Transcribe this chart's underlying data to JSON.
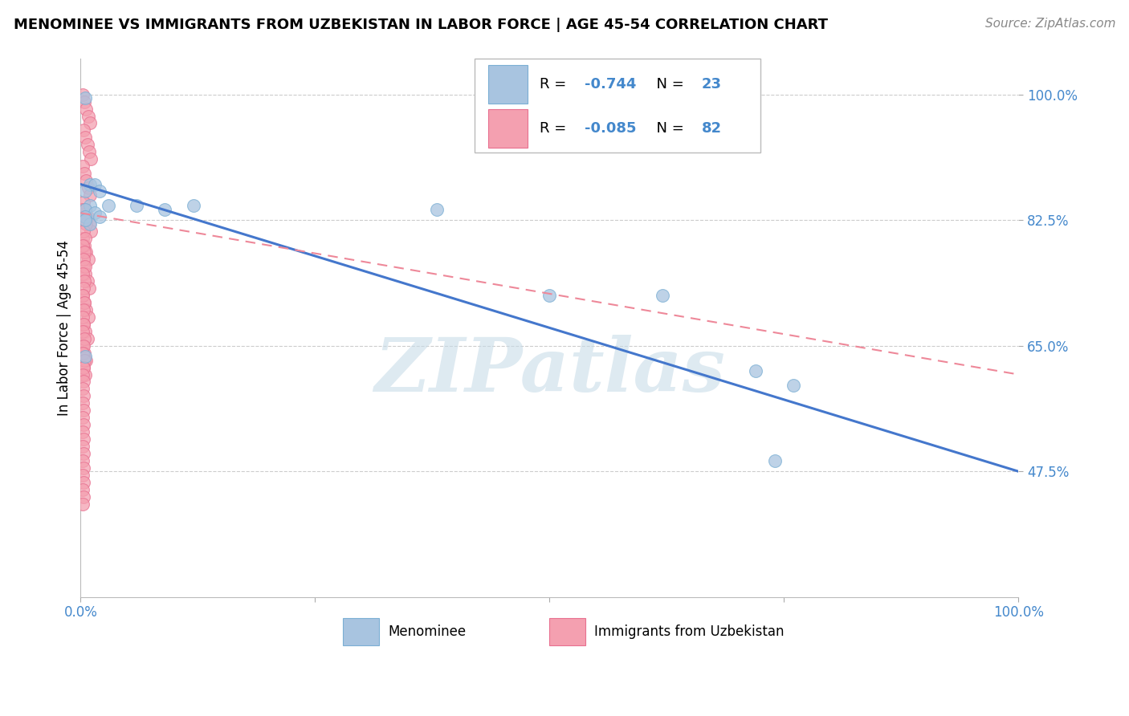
{
  "title": "MENOMINEE VS IMMIGRANTS FROM UZBEKISTAN IN LABOR FORCE | AGE 45-54 CORRELATION CHART",
  "source": "Source: ZipAtlas.com",
  "ylabel": "In Labor Force | Age 45-54",
  "legend_label_blue": "Menominee",
  "legend_label_pink": "Immigrants from Uzbekistan",
  "R_blue": -0.744,
  "N_blue": 23,
  "R_pink": -0.085,
  "N_pink": 82,
  "color_blue_fill": "#A8C4E0",
  "color_blue_edge": "#7BAFD4",
  "color_pink_fill": "#F4A0B0",
  "color_pink_edge": "#E87090",
  "color_blue_line": "#4477CC",
  "color_pink_line": "#EE8899",
  "xlim": [
    0.0,
    1.0
  ],
  "ylim": [
    0.3,
    1.05
  ],
  "yticks": [
    0.475,
    0.65,
    0.825,
    1.0
  ],
  "ytick_labels": [
    "47.5%",
    "65.0%",
    "82.5%",
    "100.0%"
  ],
  "xticks": [
    0.0,
    0.25,
    0.5,
    0.75,
    1.0
  ],
  "blue_x": [
    0.005,
    0.01,
    0.005,
    0.015,
    0.02,
    0.01,
    0.005,
    0.015,
    0.03,
    0.06,
    0.09,
    0.12,
    0.005,
    0.01,
    0.005,
    0.02,
    0.38,
    0.5,
    0.62,
    0.72,
    0.74,
    0.76,
    0.005
  ],
  "blue_y": [
    0.995,
    0.875,
    0.865,
    0.875,
    0.865,
    0.845,
    0.84,
    0.835,
    0.845,
    0.845,
    0.84,
    0.845,
    0.83,
    0.82,
    0.825,
    0.83,
    0.84,
    0.72,
    0.72,
    0.615,
    0.49,
    0.595,
    0.635
  ],
  "pink_x": [
    0.002,
    0.004,
    0.006,
    0.008,
    0.01,
    0.003,
    0.005,
    0.007,
    0.009,
    0.011,
    0.002,
    0.004,
    0.006,
    0.008,
    0.01,
    0.003,
    0.005,
    0.007,
    0.009,
    0.011,
    0.002,
    0.004,
    0.006,
    0.008,
    0.003,
    0.005,
    0.007,
    0.009,
    0.002,
    0.004,
    0.006,
    0.008,
    0.003,
    0.005,
    0.007,
    0.002,
    0.004,
    0.006,
    0.003,
    0.005,
    0.002,
    0.004,
    0.006,
    0.003,
    0.005,
    0.002,
    0.004,
    0.003,
    0.005,
    0.002,
    0.004,
    0.003,
    0.002,
    0.004,
    0.003,
    0.002,
    0.003,
    0.002,
    0.004,
    0.003,
    0.002,
    0.004,
    0.003,
    0.002,
    0.003,
    0.002,
    0.003,
    0.002,
    0.003,
    0.002,
    0.003,
    0.002,
    0.003,
    0.002,
    0.003,
    0.002,
    0.003,
    0.002,
    0.003,
    0.002,
    0.003,
    0.002
  ],
  "pink_y": [
    1.0,
    0.99,
    0.98,
    0.97,
    0.96,
    0.95,
    0.94,
    0.93,
    0.92,
    0.91,
    0.9,
    0.89,
    0.88,
    0.87,
    0.86,
    0.85,
    0.84,
    0.83,
    0.82,
    0.81,
    0.8,
    0.79,
    0.78,
    0.77,
    0.76,
    0.75,
    0.74,
    0.73,
    0.72,
    0.71,
    0.7,
    0.69,
    0.68,
    0.67,
    0.66,
    0.65,
    0.64,
    0.63,
    0.62,
    0.61,
    0.84,
    0.83,
    0.82,
    0.81,
    0.8,
    0.79,
    0.78,
    0.77,
    0.76,
    0.75,
    0.74,
    0.73,
    0.72,
    0.71,
    0.7,
    0.69,
    0.68,
    0.67,
    0.66,
    0.65,
    0.64,
    0.63,
    0.62,
    0.61,
    0.6,
    0.59,
    0.58,
    0.57,
    0.56,
    0.55,
    0.54,
    0.53,
    0.52,
    0.51,
    0.5,
    0.49,
    0.48,
    0.47,
    0.46,
    0.45,
    0.44,
    0.43
  ],
  "blue_line_x": [
    0.0,
    1.0
  ],
  "blue_line_y": [
    0.875,
    0.475
  ],
  "pink_line_x": [
    0.0,
    1.0
  ],
  "pink_line_y": [
    0.835,
    0.61
  ],
  "watermark": "ZIPatlas",
  "watermark_color": "#C8DCE8",
  "background_color": "#FFFFFF",
  "grid_color": "#CCCCCC",
  "tick_label_color": "#4488CC",
  "title_fontsize": 13,
  "source_fontsize": 11,
  "axis_label_fontsize": 12,
  "tick_fontsize": 12,
  "legend_fontsize": 13
}
